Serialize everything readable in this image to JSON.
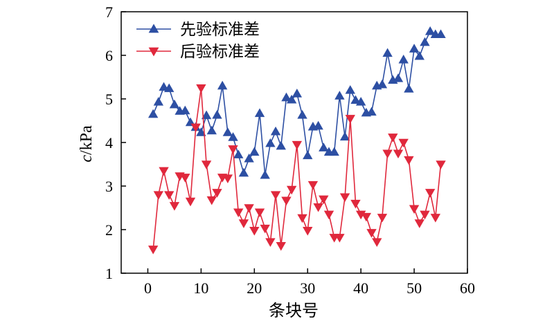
{
  "chart_data": {
    "type": "line",
    "xlabel": "条块号",
    "ylabel_italic": "c",
    "ylabel_rest": "/kPa",
    "xlim": [
      -5,
      60
    ],
    "ylim": [
      1,
      7
    ],
    "xticks": [
      0,
      10,
      20,
      30,
      40,
      50,
      60
    ],
    "yticks": [
      1,
      2,
      3,
      4,
      5,
      6,
      7
    ],
    "grid": false,
    "legend_position": "top-left",
    "series": [
      {
        "name": "先验标准差",
        "color": "#2d4fa3",
        "marker": "triangle-up",
        "x": [
          1,
          2,
          3,
          4,
          5,
          6,
          7,
          8,
          9,
          10,
          11,
          12,
          13,
          14,
          15,
          16,
          17,
          18,
          19,
          20,
          21,
          22,
          23,
          24,
          25,
          26,
          27,
          28,
          29,
          30,
          31,
          32,
          33,
          34,
          35,
          36,
          37,
          38,
          39,
          40,
          41,
          42,
          43,
          44,
          45,
          46,
          47,
          48,
          49,
          50,
          51,
          52,
          53,
          54,
          55
        ],
        "y": [
          4.65,
          4.93,
          5.27,
          5.24,
          4.87,
          4.72,
          4.73,
          4.46,
          4.35,
          4.23,
          4.62,
          4.27,
          4.63,
          5.3,
          4.23,
          4.12,
          3.72,
          3.3,
          3.63,
          3.78,
          4.67,
          3.25,
          3.98,
          4.25,
          3.92,
          5.03,
          4.98,
          5.12,
          4.63,
          3.7,
          4.36,
          4.38,
          3.88,
          3.78,
          3.78,
          5.07,
          4.13,
          5.2,
          4.97,
          4.93,
          4.68,
          4.7,
          5.3,
          5.33,
          6.05,
          5.43,
          5.47,
          5.9,
          5.23,
          6.15,
          5.98,
          6.3,
          6.55,
          6.48,
          6.48
        ]
      },
      {
        "name": "后验标准差",
        "color": "#e0283c",
        "marker": "triangle-down",
        "x": [
          1,
          2,
          3,
          4,
          5,
          6,
          7,
          8,
          9,
          10,
          11,
          12,
          13,
          14,
          15,
          16,
          17,
          18,
          19,
          20,
          21,
          22,
          23,
          24,
          25,
          26,
          27,
          28,
          29,
          30,
          31,
          32,
          33,
          34,
          35,
          36,
          37,
          38,
          39,
          40,
          41,
          42,
          43,
          44,
          45,
          46,
          47,
          48,
          49,
          50,
          51,
          52,
          53,
          54,
          55
        ],
        "y": [
          1.55,
          2.8,
          3.35,
          2.8,
          2.55,
          3.23,
          3.2,
          2.65,
          4.35,
          5.25,
          3.5,
          2.68,
          2.85,
          3.2,
          3.18,
          3.85,
          2.4,
          2.15,
          2.5,
          1.98,
          2.4,
          2.03,
          1.72,
          2.8,
          1.63,
          2.67,
          2.92,
          3.95,
          2.27,
          1.98,
          3.03,
          2.52,
          2.7,
          2.35,
          1.82,
          1.82,
          2.75,
          4.55,
          2.6,
          2.35,
          2.3,
          1.93,
          1.72,
          2.28,
          3.75,
          4.12,
          3.75,
          4.0,
          3.6,
          2.48,
          2.15,
          2.35,
          2.85,
          2.28,
          3.5
        ]
      }
    ]
  }
}
